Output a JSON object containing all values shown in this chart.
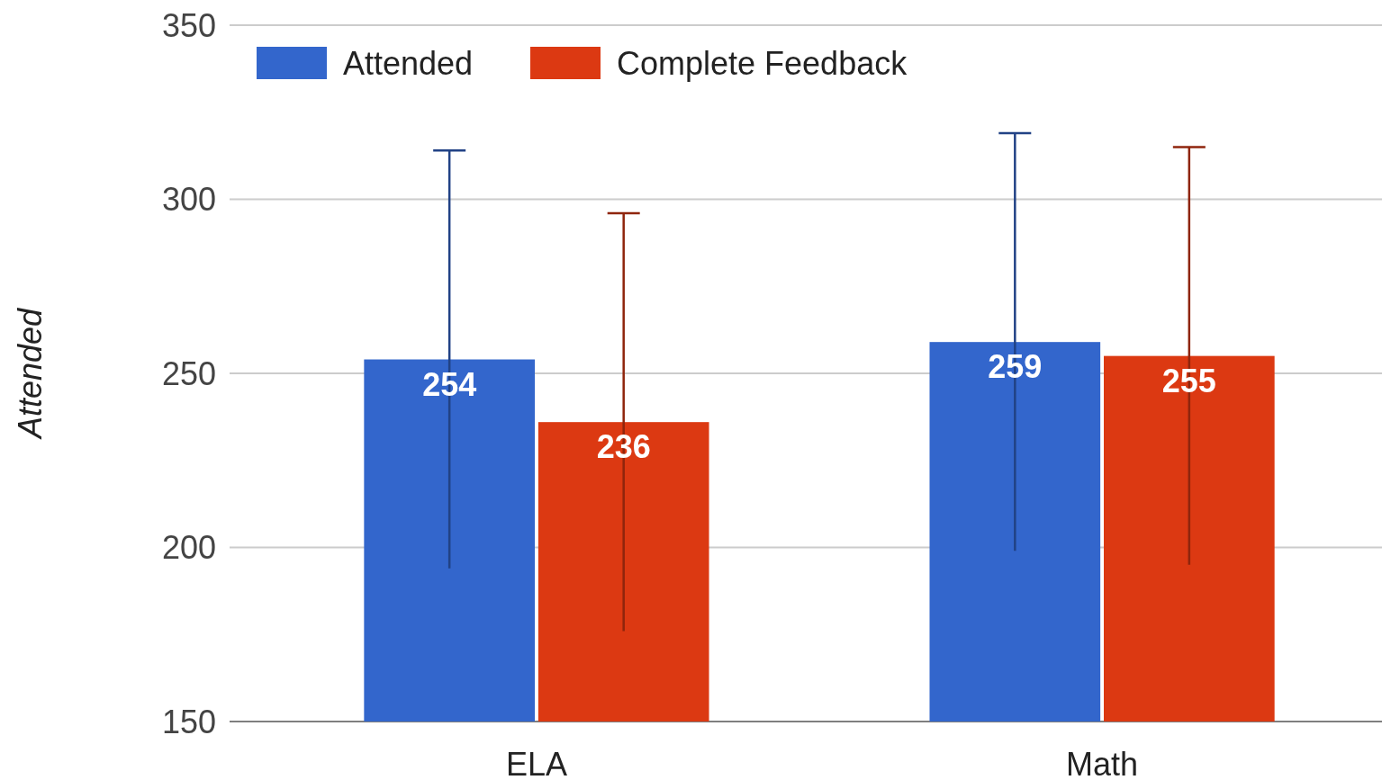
{
  "chart_data": {
    "type": "bar",
    "ylabel": "Attended",
    "categories": [
      "ELA",
      "Math"
    ],
    "series": [
      {
        "name": "Attended",
        "color": "#3366cc",
        "values": [
          254,
          259
        ],
        "errors": [
          60,
          60
        ]
      },
      {
        "name": "Complete Feedback",
        "color": "#dc3912",
        "values": [
          236,
          255
        ],
        "errors": [
          60,
          60
        ]
      }
    ],
    "ylim": [
      150,
      350
    ],
    "yticks": [
      150,
      200,
      250,
      300,
      350
    ],
    "grid": "y",
    "legend": "top left",
    "data_labels": true
  }
}
